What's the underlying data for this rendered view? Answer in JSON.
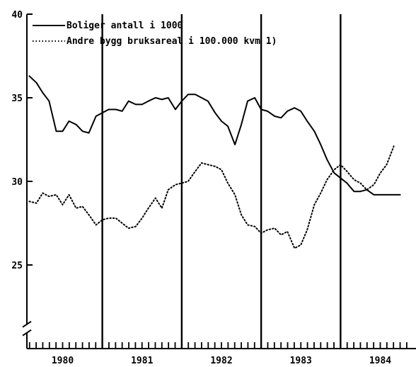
{
  "chart_data": {
    "type": "line",
    "title": "",
    "xlabel": "",
    "ylabel": "",
    "xlim": [
      1979.55,
      1984.45
    ],
    "ylim": [
      20,
      40
    ],
    "yticks": [
      25,
      30,
      35,
      40
    ],
    "year_labels": [
      "1980",
      "1981",
      "1982",
      "1983",
      "1984"
    ],
    "year_separators": [
      1980.5,
      1981.5,
      1982.5,
      1983.5
    ],
    "axis_break": true,
    "grid": false,
    "legend_position": "top-left",
    "colors": {
      "line": "#000000",
      "background": "#ffffff"
    },
    "series": [
      {
        "name": "Boliger antall i 1000",
        "style": "solid",
        "x": [
          1979.58,
          1979.67,
          1979.75,
          1979.83,
          1979.92,
          1980.0,
          1980.08,
          1980.17,
          1980.25,
          1980.33,
          1980.42,
          1980.5,
          1980.58,
          1980.67,
          1980.75,
          1980.83,
          1980.92,
          1981.0,
          1981.08,
          1981.17,
          1981.25,
          1981.33,
          1981.42,
          1981.5,
          1981.58,
          1981.67,
          1981.75,
          1981.83,
          1981.92,
          1982.0,
          1982.08,
          1982.17,
          1982.25,
          1982.33,
          1982.42,
          1982.5,
          1982.58,
          1982.67,
          1982.75,
          1982.83,
          1982.92,
          1983.0,
          1983.08,
          1983.17,
          1983.25,
          1983.33,
          1983.42,
          1983.5,
          1983.58,
          1983.67,
          1983.75,
          1983.83,
          1983.92,
          1984.0,
          1984.08,
          1984.17,
          1984.25
        ],
        "y": [
          36.3,
          35.9,
          35.3,
          34.8,
          33.0,
          33.0,
          33.6,
          33.4,
          33.0,
          32.9,
          33.9,
          34.1,
          34.3,
          34.3,
          34.2,
          34.8,
          34.6,
          34.6,
          34.8,
          35.0,
          34.9,
          35.0,
          34.3,
          34.8,
          35.2,
          35.2,
          35.0,
          34.8,
          34.1,
          33.6,
          33.3,
          32.2,
          33.4,
          34.8,
          35.0,
          34.3,
          34.2,
          33.9,
          33.8,
          34.2,
          34.4,
          34.2,
          33.6,
          33.0,
          32.2,
          31.3,
          30.5,
          30.2,
          29.9,
          29.4,
          29.4,
          29.5,
          29.2,
          29.2,
          29.2,
          29.2,
          29.2
        ]
      },
      {
        "name": "Andre bygg bruksareal i 100.000 kvm 1)",
        "style": "dotted",
        "x": [
          1979.58,
          1979.67,
          1979.75,
          1979.83,
          1979.92,
          1980.0,
          1980.08,
          1980.17,
          1980.25,
          1980.33,
          1980.42,
          1980.5,
          1980.58,
          1980.67,
          1980.75,
          1980.83,
          1980.92,
          1981.0,
          1981.08,
          1981.17,
          1981.25,
          1981.33,
          1981.42,
          1981.5,
          1981.58,
          1981.67,
          1981.75,
          1981.83,
          1981.92,
          1982.0,
          1982.08,
          1982.17,
          1982.25,
          1982.33,
          1982.42,
          1982.5,
          1982.58,
          1982.67,
          1982.75,
          1982.83,
          1982.92,
          1983.0,
          1983.08,
          1983.17,
          1983.25,
          1983.33,
          1983.42,
          1983.5,
          1983.58,
          1983.67,
          1983.75,
          1983.83,
          1983.92,
          1984.0,
          1984.08,
          1984.17
        ],
        "y": [
          28.8,
          28.7,
          29.3,
          29.1,
          29.2,
          28.6,
          29.2,
          28.4,
          28.5,
          28.0,
          27.4,
          27.7,
          27.8,
          27.8,
          27.5,
          27.2,
          27.3,
          27.8,
          28.4,
          29.0,
          28.4,
          29.5,
          29.8,
          29.9,
          30.0,
          30.6,
          31.1,
          31.0,
          30.9,
          30.7,
          29.9,
          29.2,
          28.0,
          27.4,
          27.3,
          26.9,
          27.1,
          27.2,
          26.8,
          27.0,
          26.0,
          26.2,
          27.1,
          28.6,
          29.3,
          30.1,
          30.7,
          31.0,
          30.6,
          30.1,
          29.9,
          29.5,
          29.8,
          30.5,
          31.0,
          32.1
        ]
      }
    ]
  }
}
